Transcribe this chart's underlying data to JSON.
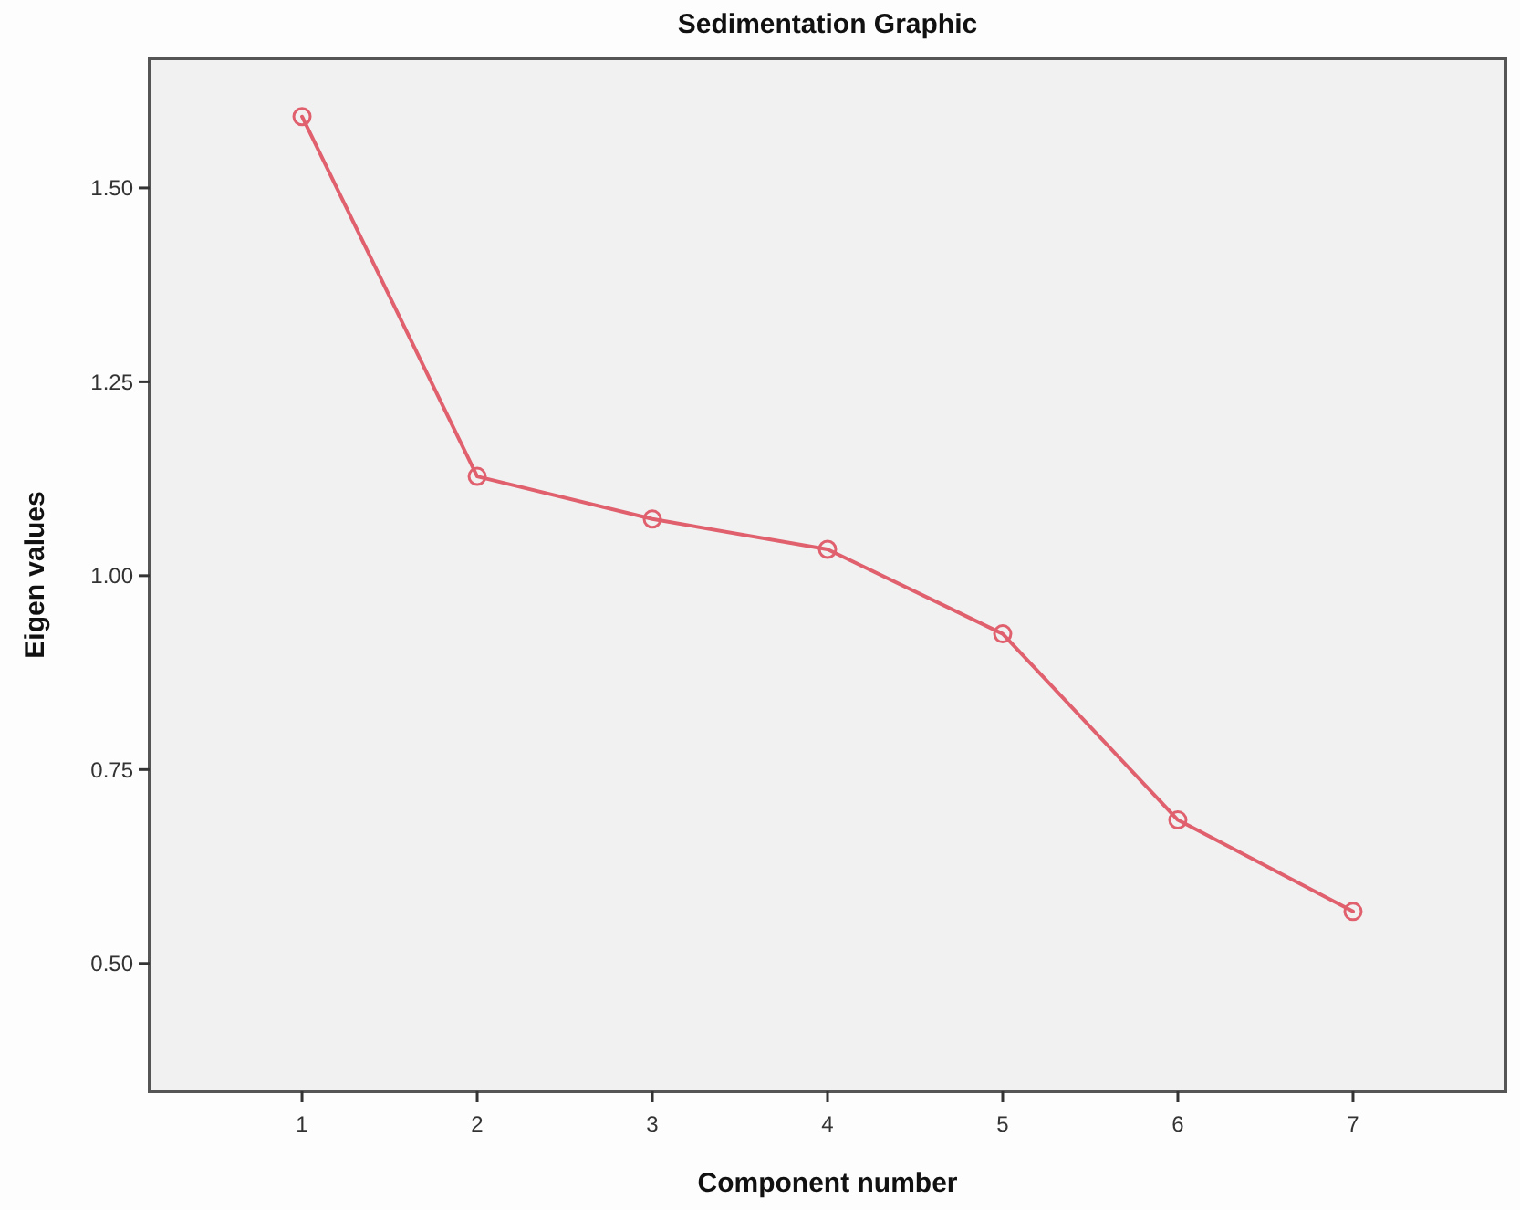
{
  "chart_data": {
    "type": "line",
    "title": "Sedimentation Graphic",
    "xlabel": "Component number",
    "ylabel": "Eigen values",
    "x": [
      1,
      2,
      3,
      4,
      5,
      6,
      7
    ],
    "series": [
      {
        "color": "#e0606e",
        "values": [
          1.592,
          1.128,
          1.073,
          1.034,
          0.925,
          0.685,
          0.567
        ]
      }
    ],
    "xlim": [
      0.13,
      7.87
    ],
    "xticks": [
      1,
      2,
      3,
      4,
      5,
      6,
      7
    ],
    "ylim": [
      0.335,
      1.667
    ],
    "yticks": [
      {
        "value": 0.5,
        "label": "0.50"
      },
      {
        "value": 0.75,
        "label": "0.75"
      },
      {
        "value": 1,
        "label": "1.00"
      },
      {
        "value": 1.25,
        "label": "1.25"
      },
      {
        "value": 1.5,
        "label": "1.50"
      }
    ],
    "marker": "circle",
    "line_style": "solid",
    "grid": false
  }
}
